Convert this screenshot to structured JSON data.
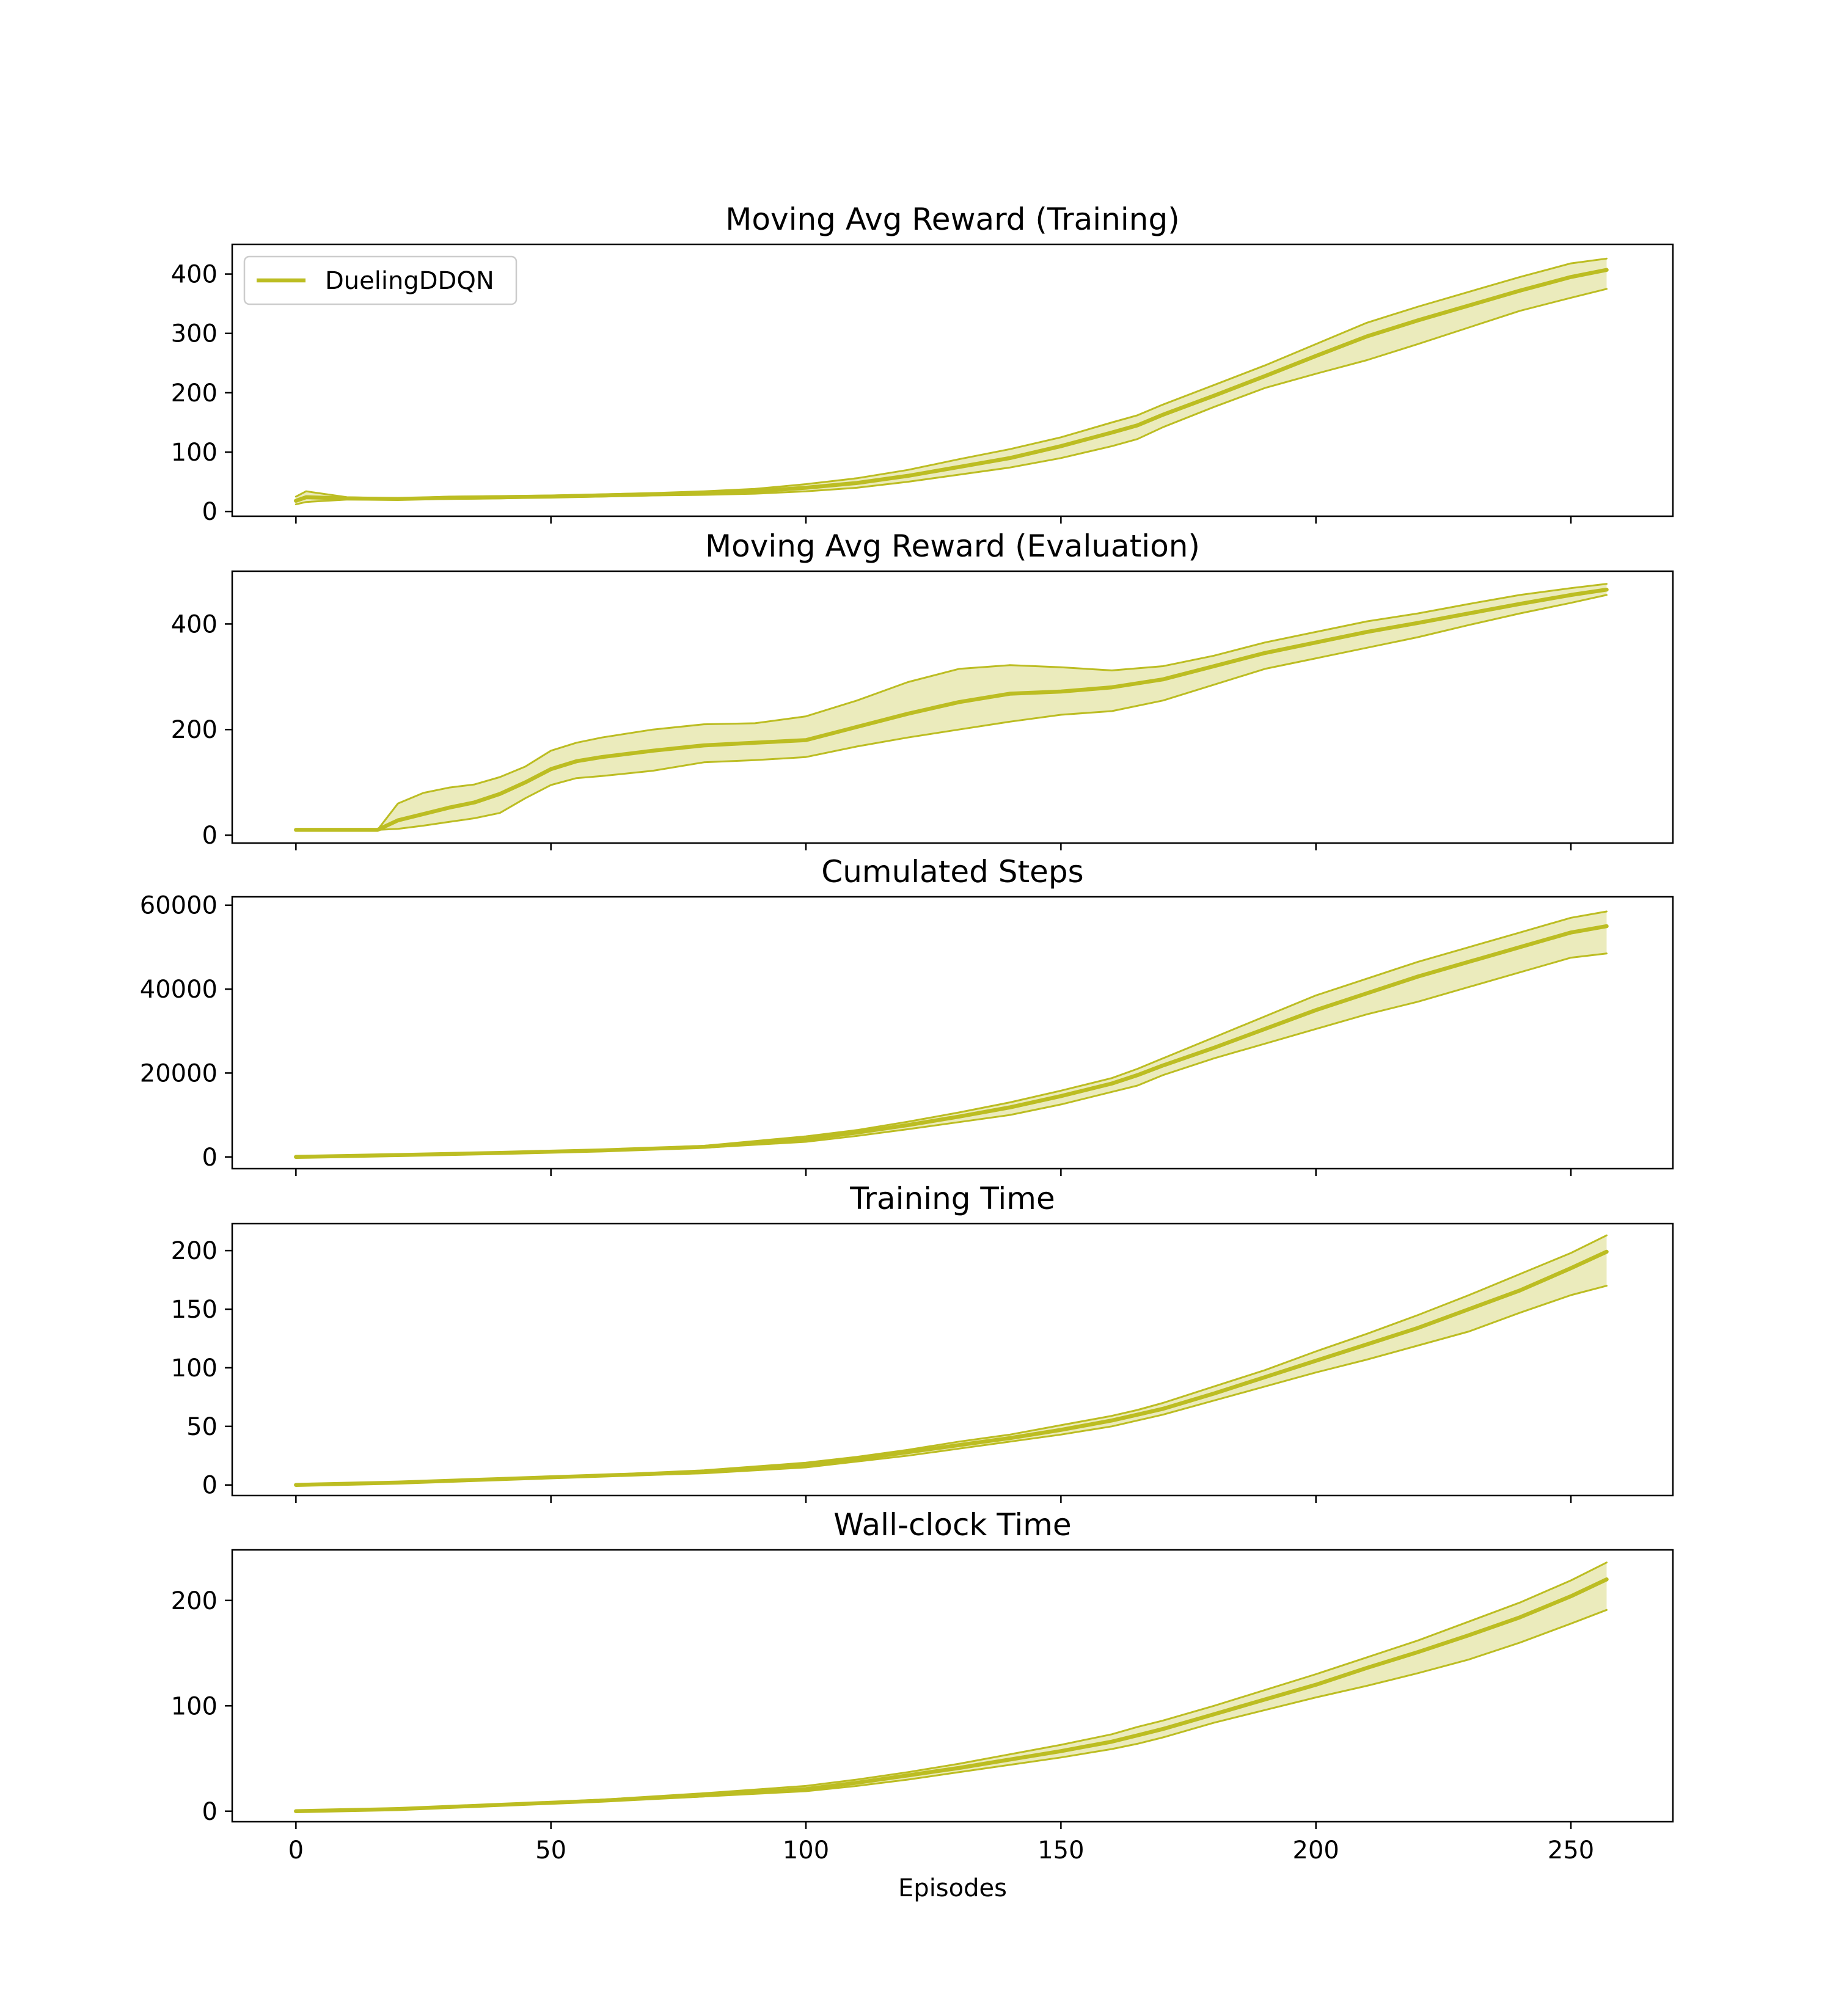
{
  "figure": {
    "xlabel": "Episodes",
    "series_color": "#bcbd22",
    "legend": {
      "label": "DuelingDDQN",
      "placement": "upper-left"
    }
  },
  "chart_data": [
    {
      "type": "line",
      "title": "Moving Avg Reward (Training)",
      "xlim": [
        -12.5,
        270
      ],
      "ylim": [
        -8,
        450
      ],
      "xticks": [
        0,
        50,
        100,
        150,
        200,
        250
      ],
      "yticks": [
        0,
        100,
        200,
        300,
        400
      ],
      "show_xticklabels": false,
      "series": [
        {
          "name": "DuelingDDQN",
          "x": [
            0,
            2,
            10,
            20,
            30,
            40,
            50,
            60,
            70,
            80,
            90,
            100,
            110,
            120,
            130,
            140,
            150,
            160,
            165,
            170,
            180,
            190,
            200,
            210,
            220,
            230,
            240,
            250,
            257
          ],
          "mean": [
            18,
            24,
            22,
            21,
            23,
            24,
            25,
            27,
            29,
            31,
            34,
            40,
            48,
            60,
            75,
            90,
            110,
            133,
            145,
            163,
            195,
            228,
            262,
            295,
            322,
            347,
            372,
            395,
            407
          ],
          "upper": [
            25,
            34,
            24,
            22,
            25,
            26,
            27,
            29,
            31,
            34,
            38,
            46,
            56,
            70,
            88,
            105,
            125,
            150,
            162,
            180,
            213,
            246,
            282,
            318,
            345,
            370,
            395,
            418,
            426
          ],
          "lower": [
            12,
            16,
            20,
            20,
            21,
            22,
            24,
            25,
            27,
            28,
            30,
            34,
            40,
            50,
            62,
            74,
            90,
            110,
            122,
            142,
            176,
            208,
            232,
            255,
            282,
            310,
            338,
            360,
            375
          ]
        }
      ]
    },
    {
      "type": "line",
      "title": "Moving Avg Reward (Evaluation)",
      "xlim": [
        -12.5,
        270
      ],
      "ylim": [
        -15,
        500
      ],
      "xticks": [
        0,
        50,
        100,
        150,
        200,
        250
      ],
      "yticks": [
        0,
        200,
        400
      ],
      "show_xticklabels": false,
      "series": [
        {
          "name": "DuelingDDQN",
          "x": [
            0,
            16,
            20,
            25,
            30,
            35,
            40,
            45,
            50,
            55,
            60,
            70,
            80,
            90,
            100,
            110,
            120,
            130,
            140,
            150,
            160,
            170,
            180,
            190,
            200,
            210,
            220,
            230,
            240,
            250,
            257
          ],
          "mean": [
            10,
            10,
            28,
            40,
            52,
            62,
            78,
            100,
            125,
            140,
            148,
            160,
            170,
            175,
            180,
            205,
            230,
            252,
            268,
            272,
            280,
            295,
            320,
            345,
            365,
            385,
            402,
            420,
            438,
            455,
            465
          ],
          "upper": [
            10,
            10,
            60,
            80,
            90,
            96,
            110,
            130,
            160,
            175,
            185,
            200,
            210,
            212,
            225,
            255,
            290,
            315,
            322,
            318,
            312,
            320,
            340,
            365,
            385,
            405,
            420,
            438,
            455,
            468,
            476
          ],
          "lower": [
            10,
            10,
            12,
            18,
            25,
            32,
            42,
            70,
            95,
            108,
            112,
            122,
            138,
            142,
            148,
            168,
            185,
            200,
            215,
            228,
            235,
            255,
            285,
            315,
            335,
            355,
            375,
            398,
            420,
            440,
            455
          ]
        }
      ]
    },
    {
      "type": "line",
      "title": "Cumulated Steps",
      "xlim": [
        -12.5,
        270
      ],
      "ylim": [
        -2800,
        62000
      ],
      "xticks": [
        0,
        50,
        100,
        150,
        200,
        250
      ],
      "yticks": [
        0,
        20000,
        40000,
        60000
      ],
      "show_xticklabels": false,
      "series": [
        {
          "name": "DuelingDDQN",
          "x": [
            0,
            20,
            40,
            60,
            80,
            100,
            110,
            120,
            130,
            140,
            150,
            160,
            165,
            170,
            180,
            190,
            200,
            210,
            220,
            230,
            240,
            250,
            257
          ],
          "mean": [
            0,
            450,
            950,
            1550,
            2400,
            4200,
            5800,
            7600,
            9600,
            11800,
            14500,
            17500,
            19500,
            21800,
            26000,
            30500,
            35000,
            39000,
            43000,
            46500,
            50000,
            53500,
            55000
          ],
          "upper": [
            0,
            480,
            1000,
            1650,
            2650,
            4900,
            6400,
            8400,
            10600,
            13000,
            15800,
            18800,
            21000,
            23500,
            28500,
            33500,
            38500,
            42500,
            46500,
            50000,
            53500,
            57000,
            58500
          ],
          "lower": [
            0,
            420,
            900,
            1450,
            2200,
            3600,
            5000,
            6600,
            8300,
            10000,
            12500,
            15500,
            17000,
            19500,
            23500,
            27000,
            30500,
            34000,
            37000,
            40500,
            44000,
            47500,
            48500
          ]
        }
      ]
    },
    {
      "type": "line",
      "title": "Training Time",
      "xlim": [
        -12.5,
        270
      ],
      "ylim": [
        -9,
        223
      ],
      "xticks": [
        0,
        50,
        100,
        150,
        200,
        250
      ],
      "yticks": [
        0,
        50,
        100,
        150,
        200
      ],
      "show_xticklabels": false,
      "series": [
        {
          "name": "DuelingDDQN",
          "x": [
            0,
            20,
            40,
            60,
            80,
            100,
            110,
            120,
            130,
            140,
            150,
            160,
            165,
            170,
            180,
            190,
            200,
            210,
            220,
            230,
            240,
            250,
            257
          ],
          "mean": [
            0,
            2,
            5,
            8,
            11,
            17,
            22,
            28,
            34,
            40,
            47,
            55,
            60,
            65,
            78,
            92,
            106,
            120,
            134,
            150,
            166,
            185,
            199
          ],
          "upper": [
            0,
            2.2,
            5.5,
            8.5,
            12.5,
            19,
            24,
            30,
            37,
            43,
            51,
            59,
            64,
            70,
            84,
            98,
            114,
            129,
            145,
            162,
            180,
            198,
            213
          ],
          "lower": [
            0,
            1.8,
            4.5,
            7.5,
            10,
            15,
            20,
            25,
            31,
            37,
            43,
            50,
            55,
            60,
            72,
            84,
            96,
            107,
            119,
            131,
            147,
            162,
            170
          ]
        }
      ]
    },
    {
      "type": "line",
      "title": "Wall-clock Time",
      "xlim": [
        -12.5,
        270
      ],
      "ylim": [
        -10,
        248
      ],
      "xticks": [
        0,
        50,
        100,
        150,
        200,
        250
      ],
      "yticks": [
        0,
        100,
        200
      ],
      "show_xticklabels": true,
      "xlabel": "Episodes",
      "series": [
        {
          "name": "DuelingDDQN",
          "x": [
            0,
            20,
            40,
            60,
            80,
            100,
            110,
            120,
            130,
            140,
            150,
            160,
            165,
            170,
            180,
            190,
            200,
            210,
            220,
            230,
            240,
            250,
            257
          ],
          "mean": [
            0,
            2,
            6,
            10,
            15,
            21,
            27,
            34,
            41,
            49,
            57,
            66,
            72,
            78,
            92,
            106,
            120,
            136,
            151,
            167,
            184,
            204,
            220
          ],
          "upper": [
            0,
            2.3,
            6.5,
            11,
            17,
            24,
            30,
            37,
            45,
            54,
            63,
            73,
            80,
            86,
            100,
            115,
            130,
            146,
            162,
            180,
            198,
            219,
            236
          ],
          "lower": [
            0,
            1.8,
            5.5,
            9.5,
            14,
            19,
            24,
            30,
            37,
            44,
            51,
            59,
            64,
            70,
            84,
            96,
            108,
            119,
            131,
            144,
            160,
            178,
            191
          ]
        }
      ]
    }
  ]
}
